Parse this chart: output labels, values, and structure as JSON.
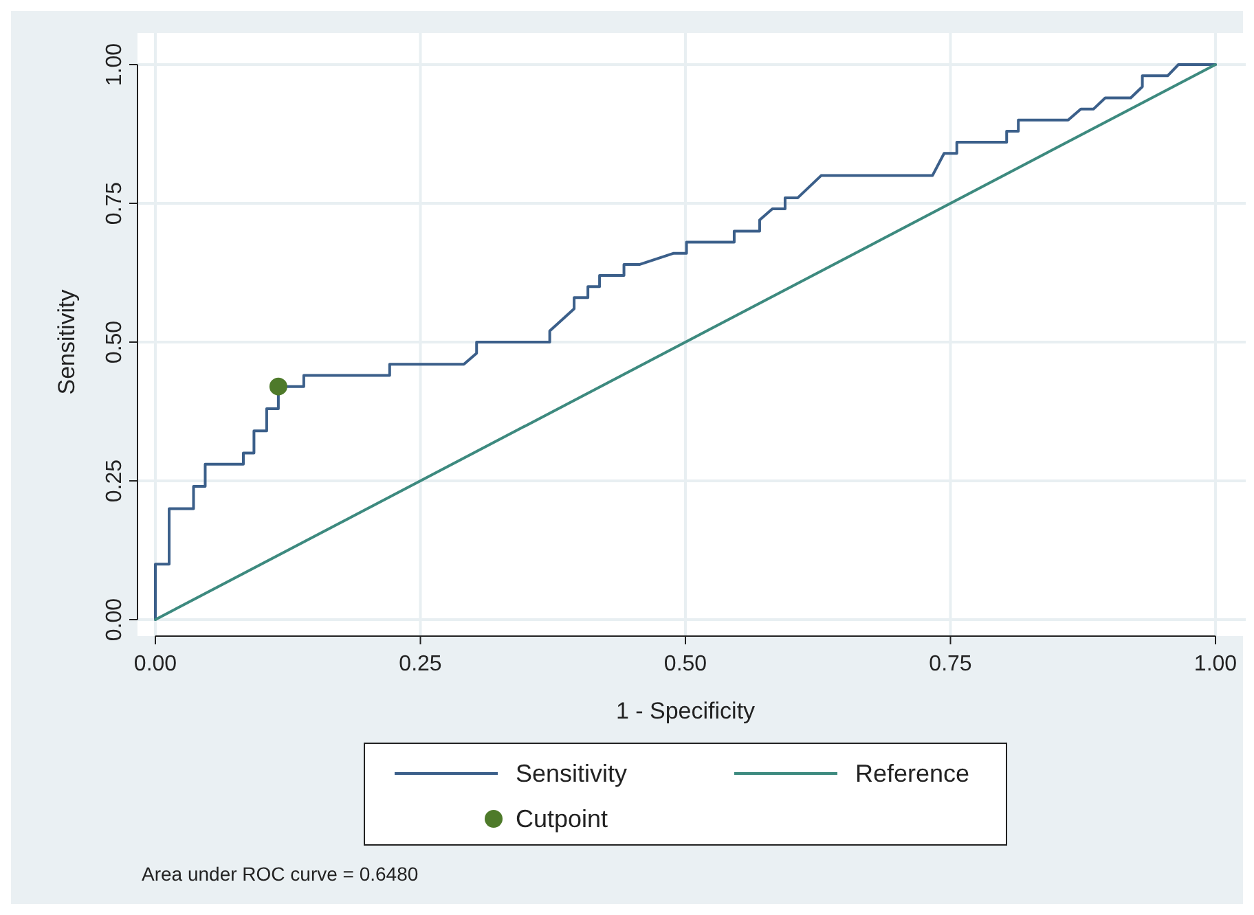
{
  "chart_data": {
    "type": "line",
    "xlabel": "1 - Specificity",
    "ylabel": "Sensitivity",
    "xlim": [
      0,
      1
    ],
    "ylim": [
      0,
      1
    ],
    "xticks": [
      {
        "value": 0,
        "label": "0.00"
      },
      {
        "value": 0.25,
        "label": "0.25"
      },
      {
        "value": 0.5,
        "label": "0.50"
      },
      {
        "value": 0.75,
        "label": "0.75"
      },
      {
        "value": 1,
        "label": "1.00"
      }
    ],
    "yticks": [
      {
        "value": 0,
        "label": "0.00"
      },
      {
        "value": 0.25,
        "label": "0.25"
      },
      {
        "value": 0.5,
        "label": "0.50"
      },
      {
        "value": 0.75,
        "label": "0.75"
      },
      {
        "value": 1,
        "label": "1.00"
      }
    ],
    "grid": true,
    "legend": "bottom",
    "annotations": [
      "Area under ROC curve = 0.6480"
    ],
    "series": [
      {
        "name": "Sensitivity",
        "color": "#3b5f8a",
        "marker": "none",
        "x": [
          0,
          0,
          0.013,
          0.013,
          0.036,
          0.036,
          0.047,
          0.047,
          0.083,
          0.083,
          0.093,
          0.093,
          0.105,
          0.105,
          0.116,
          0.116,
          0.14,
          0.14,
          0.221,
          0.221,
          0.291,
          0.303,
          0.303,
          0.372,
          0.372,
          0.395,
          0.395,
          0.408,
          0.408,
          0.419,
          0.419,
          0.442,
          0.442,
          0.457,
          0.489,
          0.501,
          0.501,
          0.546,
          0.546,
          0.57,
          0.57,
          0.582,
          0.594,
          0.594,
          0.606,
          0.628,
          0.733,
          0.744,
          0.756,
          0.756,
          0.803,
          0.803,
          0.814,
          0.814,
          0.861,
          0.873,
          0.885,
          0.896,
          0.92,
          0.931,
          0.931,
          0.955,
          0.965,
          1
        ],
        "values": [
          0,
          0.1,
          0.1,
          0.2,
          0.2,
          0.24,
          0.24,
          0.28,
          0.28,
          0.3,
          0.3,
          0.34,
          0.34,
          0.38,
          0.38,
          0.42,
          0.42,
          0.44,
          0.44,
          0.46,
          0.46,
          0.48,
          0.5,
          0.5,
          0.52,
          0.56,
          0.58,
          0.58,
          0.6,
          0.6,
          0.62,
          0.62,
          0.64,
          0.64,
          0.66,
          0.66,
          0.68,
          0.68,
          0.7,
          0.7,
          0.72,
          0.74,
          0.74,
          0.76,
          0.76,
          0.8,
          0.8,
          0.84,
          0.84,
          0.86,
          0.86,
          0.88,
          0.88,
          0.9,
          0.9,
          0.92,
          0.92,
          0.94,
          0.94,
          0.96,
          0.98,
          0.98,
          1,
          1
        ]
      },
      {
        "name": "Reference",
        "color": "#3d8a7f",
        "marker": "none",
        "x": [
          0,
          1
        ],
        "values": [
          0,
          1
        ]
      },
      {
        "name": "Cutpoint",
        "type": "scatter",
        "color": "#4e7a2a",
        "marker": "circle",
        "x": [
          0.116
        ],
        "values": [
          0.42
        ]
      }
    ]
  }
}
